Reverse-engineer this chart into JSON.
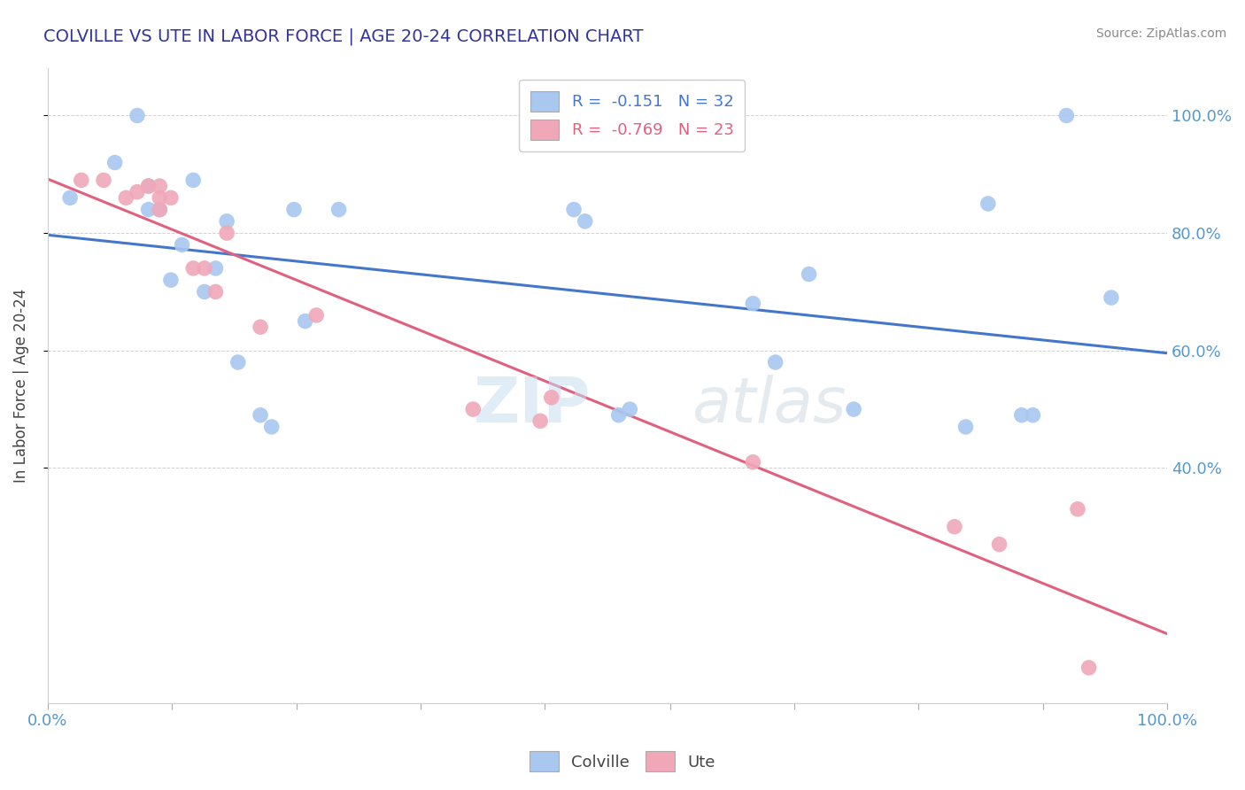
{
  "title": "COLVILLE VS UTE IN LABOR FORCE | AGE 20-24 CORRELATION CHART",
  "source_text": "Source: ZipAtlas.com",
  "ylabel": "In Labor Force | Age 20-24",
  "colville_R": -0.151,
  "colville_N": 32,
  "ute_R": -0.769,
  "ute_N": 23,
  "colville_color": "#a8c8f0",
  "ute_color": "#f0a8b8",
  "colville_line_color": "#4477cc",
  "ute_line_color": "#e06080",
  "colville_x": [
    0.02,
    0.06,
    0.08,
    0.09,
    0.09,
    0.1,
    0.11,
    0.12,
    0.13,
    0.14,
    0.15,
    0.16,
    0.17,
    0.19,
    0.2,
    0.22,
    0.23,
    0.26,
    0.47,
    0.48,
    0.51,
    0.52,
    0.63,
    0.65,
    0.68,
    0.72,
    0.82,
    0.84,
    0.87,
    0.88,
    0.91,
    0.95
  ],
  "colville_y": [
    0.86,
    0.92,
    1.0,
    0.84,
    0.88,
    0.84,
    0.72,
    0.78,
    0.89,
    0.7,
    0.74,
    0.82,
    0.58,
    0.49,
    0.47,
    0.84,
    0.65,
    0.84,
    0.84,
    0.82,
    0.49,
    0.5,
    0.68,
    0.58,
    0.73,
    0.5,
    0.47,
    0.85,
    0.49,
    0.49,
    1.0,
    0.69
  ],
  "ute_x": [
    0.03,
    0.05,
    0.07,
    0.08,
    0.09,
    0.1,
    0.1,
    0.1,
    0.11,
    0.13,
    0.14,
    0.15,
    0.16,
    0.19,
    0.24,
    0.38,
    0.44,
    0.45,
    0.63,
    0.81,
    0.85,
    0.92,
    0.93
  ],
  "ute_y": [
    0.89,
    0.89,
    0.86,
    0.87,
    0.88,
    0.84,
    0.86,
    0.88,
    0.86,
    0.74,
    0.74,
    0.7,
    0.8,
    0.64,
    0.66,
    0.5,
    0.48,
    0.52,
    0.41,
    0.3,
    0.27,
    0.33,
    0.06
  ],
  "ylim_min": 0.0,
  "ylim_max": 1.08,
  "xlim_min": 0.0,
  "xlim_max": 1.0,
  "yticks": [
    0.4,
    0.6,
    0.8,
    1.0
  ],
  "ytick_labels": [
    "40.0%",
    "60.0%",
    "80.0%",
    "100.0%"
  ],
  "xtick_positions": [
    0.0,
    0.111,
    0.222,
    0.333,
    0.444,
    0.556,
    0.667,
    0.778,
    0.889,
    1.0
  ],
  "grid_color": "#cccccc",
  "title_color": "#333399",
  "axis_tick_color": "#5599cc",
  "background_color": "#ffffff",
  "watermark_text": "ZIPatlas",
  "watermark_color": "#dde8f5",
  "legend_colville_label": "R =  -0.151   N = 32",
  "legend_ute_label": "R =  -0.769   N = 23"
}
